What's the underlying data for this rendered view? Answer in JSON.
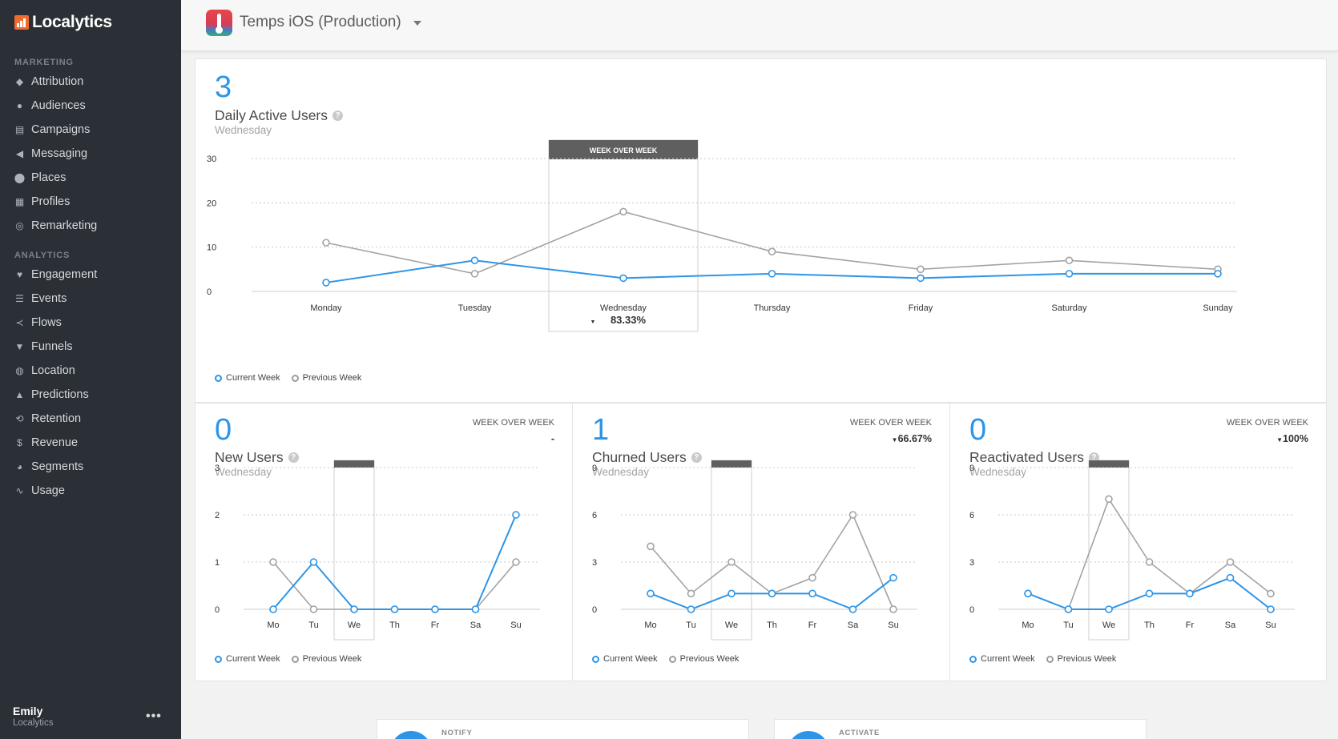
{
  "brand": {
    "name": "Localytics",
    "accent": "#ef6c2e"
  },
  "sidebar": {
    "sections": [
      {
        "label": "MARKETING",
        "items": [
          {
            "label": "Attribution",
            "icon": "tag-icon"
          },
          {
            "label": "Audiences",
            "icon": "users-icon"
          },
          {
            "label": "Campaigns",
            "icon": "campaigns-icon"
          },
          {
            "label": "Messaging",
            "icon": "megaphone-icon"
          },
          {
            "label": "Places",
            "icon": "map-pin-icon"
          },
          {
            "label": "Profiles",
            "icon": "profile-icon"
          },
          {
            "label": "Remarketing",
            "icon": "target-icon"
          }
        ]
      },
      {
        "label": "ANALYTICS",
        "items": [
          {
            "label": "Engagement",
            "icon": "heart-icon"
          },
          {
            "label": "Events",
            "icon": "list-icon"
          },
          {
            "label": "Flows",
            "icon": "flows-icon"
          },
          {
            "label": "Funnels",
            "icon": "funnel-icon"
          },
          {
            "label": "Location",
            "icon": "globe-icon"
          },
          {
            "label": "Predictions",
            "icon": "flask-icon"
          },
          {
            "label": "Retention",
            "icon": "retention-icon"
          },
          {
            "label": "Revenue",
            "icon": "dollar-icon"
          },
          {
            "label": "Segments",
            "icon": "pie-icon"
          },
          {
            "label": "Usage",
            "icon": "pulse-icon"
          }
        ]
      }
    ],
    "user": {
      "name": "Emily",
      "org": "Localytics",
      "menu": "•••"
    }
  },
  "header": {
    "app_title": "Temps iOS (Production)"
  },
  "legend": {
    "current": "Current Week",
    "previous": "Previous Week"
  },
  "colors": {
    "current": "#2d95e8",
    "previous": "#a3a3a3",
    "wow_bar": "#5f5f5f"
  },
  "metrics": {
    "dau": {
      "value": "3",
      "title": "Daily Active Users",
      "subtitle": "Wednesday",
      "wow_label": "WEEK OVER WEEK",
      "wow_value": "83.33%"
    },
    "new_users": {
      "value": "0",
      "title": "New Users",
      "subtitle": "Wednesday",
      "wow_label": "WEEK OVER WEEK",
      "wow_value": "-"
    },
    "churned": {
      "value": "1",
      "title": "Churned Users",
      "subtitle": "Wednesday",
      "wow_label": "WEEK OVER WEEK",
      "wow_value": "66.67%"
    },
    "reactivated": {
      "value": "0",
      "title": "Reactivated Users",
      "subtitle": "Wednesday",
      "wow_label": "WEEK OVER WEEK",
      "wow_value": "100%"
    }
  },
  "bottom_cards": [
    {
      "label": "NOTIFY"
    },
    {
      "label": "ACTIVATE"
    }
  ],
  "chart_data": [
    {
      "type": "line",
      "title": "Daily Active Users",
      "categories": [
        "Monday",
        "Tuesday",
        "Wednesday",
        "Thursday",
        "Friday",
        "Saturday",
        "Sunday"
      ],
      "highlight_index": 2,
      "yticks": [
        0,
        10,
        20,
        30
      ],
      "ylim": [
        0,
        30
      ],
      "grid": true,
      "series": [
        {
          "name": "Current Week",
          "values": [
            2,
            7,
            3,
            4,
            3,
            4,
            4
          ]
        },
        {
          "name": "Previous Week",
          "values": [
            11,
            4,
            18,
            9,
            5,
            7,
            5
          ]
        }
      ]
    },
    {
      "type": "line",
      "title": "New Users",
      "categories": [
        "Mo",
        "Tu",
        "We",
        "Th",
        "Fr",
        "Sa",
        "Su"
      ],
      "highlight_index": 2,
      "yticks": [
        0,
        1,
        2,
        3
      ],
      "ylim": [
        0,
        3
      ],
      "grid": true,
      "series": [
        {
          "name": "Current Week",
          "values": [
            0,
            1,
            0,
            0,
            0,
            0,
            2
          ]
        },
        {
          "name": "Previous Week",
          "values": [
            1,
            0,
            0,
            0,
            0,
            0,
            1
          ]
        }
      ]
    },
    {
      "type": "line",
      "title": "Churned Users",
      "categories": [
        "Mo",
        "Tu",
        "We",
        "Th",
        "Fr",
        "Sa",
        "Su"
      ],
      "highlight_index": 2,
      "yticks": [
        0,
        3,
        6,
        9
      ],
      "ylim": [
        0,
        9
      ],
      "grid": true,
      "series": [
        {
          "name": "Current Week",
          "values": [
            1,
            0,
            1,
            1,
            1,
            0,
            2
          ]
        },
        {
          "name": "Previous Week",
          "values": [
            4,
            1,
            3,
            1,
            2,
            6,
            0
          ]
        }
      ]
    },
    {
      "type": "line",
      "title": "Reactivated Users",
      "categories": [
        "Mo",
        "Tu",
        "We",
        "Th",
        "Fr",
        "Sa",
        "Su"
      ],
      "highlight_index": 2,
      "yticks": [
        0,
        3,
        6,
        9
      ],
      "ylim": [
        0,
        9
      ],
      "grid": true,
      "series": [
        {
          "name": "Current Week",
          "values": [
            1,
            0,
            0,
            1,
            1,
            2,
            0
          ]
        },
        {
          "name": "Previous Week",
          "values": [
            1,
            0,
            7,
            3,
            1,
            3,
            1
          ]
        }
      ]
    }
  ]
}
